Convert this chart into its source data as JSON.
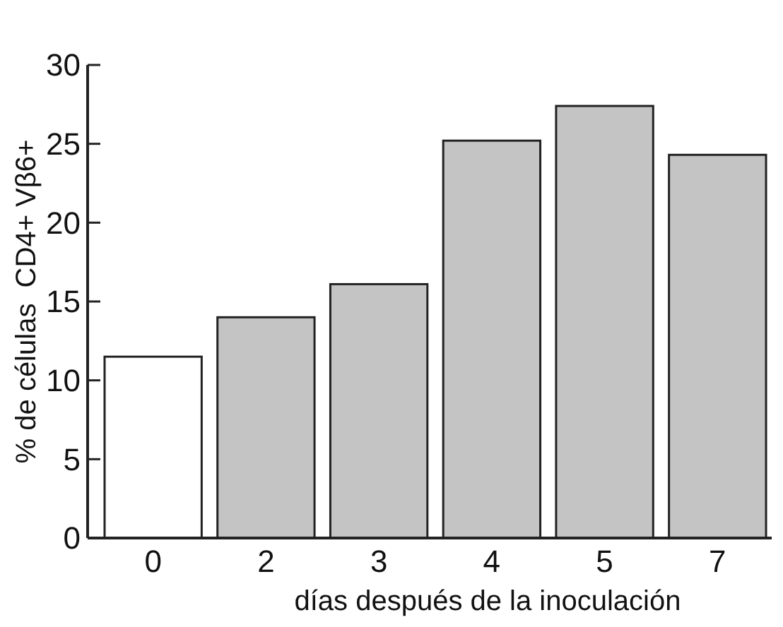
{
  "chart_data": {
    "type": "bar",
    "xlabel": "días después de la inoculación",
    "ylabel": "% de células  CD4+ Vβ6+",
    "categories": [
      "0",
      "2",
      "3",
      "4",
      "5",
      "7"
    ],
    "values": [
      11.5,
      14.0,
      16.1,
      25.2,
      27.4,
      24.3
    ],
    "colors": [
      "#ffffff",
      "#c4c4c4",
      "#c4c4c4",
      "#c4c4c4",
      "#c4c4c4",
      "#c4c4c4"
    ],
    "ylim": [
      0,
      30
    ],
    "yticks": [
      0,
      5,
      10,
      15,
      20,
      25,
      30
    ],
    "grid": false
  }
}
